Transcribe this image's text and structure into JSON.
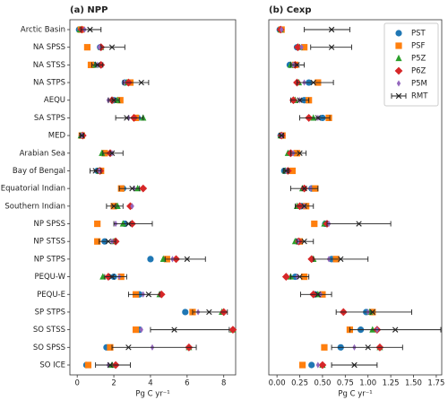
{
  "chart_data": [
    {
      "type": "scatter",
      "title": "(a) NPP",
      "x_label": "Pg C yr⁻¹",
      "categories": [
        "Arctic Basin",
        "NA SPSS",
        "NA STSS",
        "NA STPS",
        "AEQU",
        "SA STPS",
        "MED",
        "Arabian Sea",
        "Bay of Bengal",
        "Equatorial Indian",
        "Southern Indian",
        "NP SPSS",
        "NP STSS",
        "NP STPS",
        "PEQU-W",
        "PEQU-E",
        "SP STPS",
        "SO STSS",
        "SO SPSS",
        "SO ICE"
      ],
      "xlim": [
        -0.4,
        8.65
      ],
      "xticks": [
        0,
        2,
        4,
        6,
        8
      ],
      "series": [
        {
          "color": "#1f77b4",
          "marker": "circle",
          "values": [
            0.1,
            1.25,
            0.9,
            2.6,
            2.0,
            3.3,
            0.25,
            1.45,
            1.1,
            2.5,
            2.1,
            2.6,
            1.5,
            4.0,
            2.0,
            3.4,
            5.9,
            3.4,
            1.6,
            0.5
          ]
        },
        {
          "color": "#ff7f0e",
          "marker": "square",
          "values": [
            0.2,
            0.55,
            0.75,
            2.9,
            2.35,
            3.2,
            0.25,
            1.5,
            1.3,
            2.4,
            2.0,
            1.1,
            1.1,
            4.9,
            2.4,
            3.2,
            6.3,
            3.2,
            1.8,
            0.6
          ]
        },
        {
          "color": "#2ca02c",
          "marker": "triangle",
          "values": [
            0.15,
            1.3,
            1.0,
            2.7,
            2.2,
            3.6,
            0.2,
            1.35,
            1.2,
            3.3,
            2.2,
            2.5,
            2.0,
            4.7,
            1.4,
            4.5,
            7.9,
            8.5,
            6.1,
            1.9
          ]
        },
        {
          "color": "#d62728",
          "marker": "diamond",
          "values": [
            0.25,
            1.3,
            1.3,
            2.8,
            1.9,
            3.1,
            0.3,
            1.8,
            1.25,
            3.6,
            2.9,
            3.0,
            2.1,
            5.4,
            1.7,
            4.6,
            8.0,
            8.5,
            6.1,
            2.1
          ]
        },
        {
          "color": "#9467bd",
          "marker": "thin-diamond",
          "values": [
            0.4,
            1.2,
            1.1,
            2.55,
            1.7,
            2.8,
            0.25,
            1.9,
            1.2,
            3.1,
            3.0,
            2.1,
            1.9,
            5.2,
            2.3,
            3.6,
            6.6,
            3.5,
            4.1,
            1.7
          ]
        },
        {
          "color": "#222222",
          "marker": "x",
          "values": [
            0.7,
            1.9,
            1.1,
            3.5,
            2.0,
            2.7,
            0.25,
            1.9,
            1.0,
            3.0,
            2.0,
            2.8,
            1.7,
            6.0,
            1.9,
            3.9,
            7.2,
            5.3,
            2.8,
            1.8
          ],
          "lower": [
            0.2,
            1.3,
            0.8,
            2.5,
            1.7,
            2.1,
            0.15,
            1.4,
            0.7,
            2.3,
            1.6,
            2.0,
            1.2,
            4.8,
            1.5,
            2.8,
            6.3,
            4.0,
            1.9,
            1.0
          ],
          "upper": [
            1.3,
            2.6,
            1.4,
            3.9,
            2.3,
            3.6,
            0.35,
            2.5,
            1.3,
            3.4,
            2.5,
            4.1,
            2.1,
            7.0,
            2.7,
            4.5,
            8.2,
            8.3,
            6.5,
            2.9
          ]
        }
      ]
    },
    {
      "type": "scatter",
      "title": "(b) Cexp",
      "x_label": "Pg C yr⁻¹",
      "legend": "upper right",
      "xlim": [
        -0.09,
        1.81
      ],
      "xticks": [
        {
          "value": 0,
          "label": "0.00"
        },
        {
          "value": 0.25,
          "label": "0.25"
        },
        {
          "value": 0.5,
          "label": "0.50"
        },
        {
          "value": 0.75,
          "label": "0.75"
        },
        {
          "value": 1,
          "label": "1.00"
        },
        {
          "value": 1.25,
          "label": "1.25"
        },
        {
          "value": 1.5,
          "label": "1.50"
        },
        {
          "value": 1.75,
          "label": "1.75"
        }
      ],
      "series": [
        {
          "name": "PST",
          "color": "#1f77b4",
          "marker": "circle",
          "values": [
            0.03,
            0.22,
            0.14,
            0.35,
            0.3,
            0.5,
            0.04,
            0.15,
            0.08,
            0.38,
            0.27,
            0.53,
            0.22,
            0.6,
            0.2,
            0.42,
            0.98,
            0.92,
            0.7,
            0.38
          ]
        },
        {
          "name": "PSF",
          "color": "#ff7f0e",
          "marker": "square",
          "values": [
            0.05,
            0.3,
            0.2,
            0.45,
            0.35,
            0.57,
            0.06,
            0.22,
            0.17,
            0.42,
            0.32,
            0.41,
            0.25,
            0.65,
            0.3,
            0.5,
            1.05,
            0.8,
            0.52,
            0.28
          ]
        },
        {
          "name": "P5Z",
          "color": "#2ca02c",
          "marker": "triangle",
          "values": [
            0.04,
            0.25,
            0.15,
            0.24,
            0.2,
            0.4,
            0.04,
            0.12,
            0.09,
            0.28,
            0.22,
            0.52,
            0.2,
            0.4,
            0.15,
            0.45,
            1.02,
            1.05,
            1.13,
            0.5
          ]
        },
        {
          "name": "P6Z",
          "color": "#d62728",
          "marker": "diamond",
          "values": [
            0.04,
            0.23,
            0.2,
            0.22,
            0.18,
            0.35,
            0.05,
            0.15,
            0.12,
            0.3,
            0.25,
            0.55,
            0.24,
            0.38,
            0.1,
            0.4,
            0.73,
            1.1,
            1.13,
            0.5
          ]
        },
        {
          "name": "P5M",
          "color": "#9467bd",
          "marker": "thin-diamond",
          "values": [
            0.05,
            0.27,
            0.18,
            0.3,
            0.25,
            0.45,
            0.05,
            0.18,
            0.1,
            0.37,
            0.3,
            0.57,
            0.23,
            0.57,
            0.22,
            0.48,
            1.0,
            1.1,
            0.85,
            0.45
          ]
        },
        {
          "name": "RMT",
          "color": "#222222",
          "marker": "x",
          "values": [
            0.6,
            0.6,
            0.22,
            0.4,
            0.25,
            0.45,
            0.05,
            0.25,
            0.1,
            0.3,
            0.3,
            0.9,
            0.3,
            0.7,
            0.25,
            0.45,
            1.05,
            1.3,
            1.0,
            0.85
          ],
          "lower": [
            0.3,
            0.37,
            0.15,
            0.22,
            0.15,
            0.25,
            0.03,
            0.15,
            0.07,
            0.15,
            0.2,
            0.55,
            0.22,
            0.4,
            0.15,
            0.26,
            0.65,
            0.8,
            0.6,
            0.6
          ],
          "upper": [
            0.8,
            0.82,
            0.3,
            0.62,
            0.35,
            0.58,
            0.07,
            0.32,
            0.13,
            0.45,
            0.4,
            1.25,
            0.4,
            1.0,
            0.35,
            0.6,
            1.48,
            1.8,
            1.38,
            1.1
          ]
        }
      ]
    }
  ]
}
